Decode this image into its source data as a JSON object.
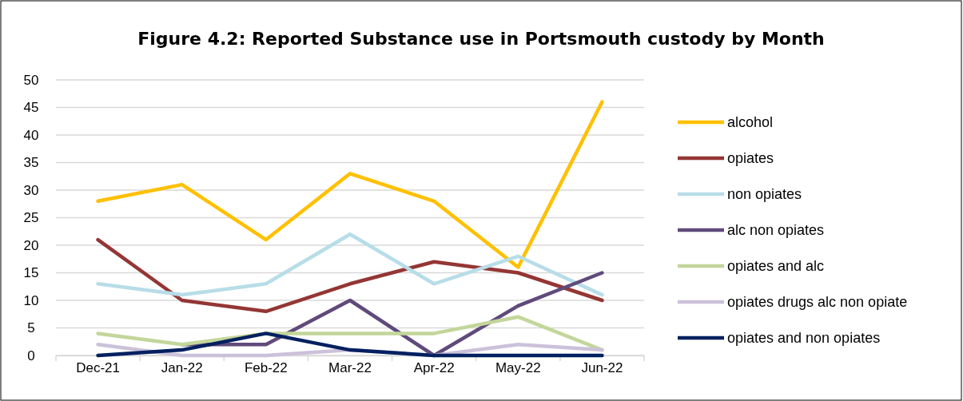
{
  "chart_data": {
    "type": "line",
    "title": "Figure 4.2: Reported Substance use in Portsmouth custody by Month",
    "categories": [
      "Dec-21",
      "Jan-22",
      "Feb-22",
      "Mar-22",
      "Apr-22",
      "May-22",
      "Jun-22"
    ],
    "series": [
      {
        "name": "alcohol",
        "color": "#ffc000",
        "values": [
          28,
          31,
          21,
          33,
          28,
          16,
          46
        ]
      },
      {
        "name": "opiates",
        "color": "#943634",
        "values": [
          21,
          10,
          8,
          13,
          17,
          15,
          10
        ]
      },
      {
        "name": "non opiates",
        "color": "#b7dde8",
        "values": [
          13,
          11,
          13,
          22,
          13,
          18,
          11
        ]
      },
      {
        "name": "alc non opiates",
        "color": "#604a7b",
        "values": [
          null,
          2,
          2,
          10,
          0,
          9,
          15
        ]
      },
      {
        "name": "opiates and alc",
        "color": "#c3d69b",
        "values": [
          4,
          2,
          4,
          4,
          4,
          7,
          1
        ]
      },
      {
        "name": "opiates drugs alc non opiate",
        "color": "#ccc1da",
        "values": [
          2,
          0,
          0,
          1,
          0,
          2,
          1
        ]
      },
      {
        "name": "opiates and non opiates",
        "color": "#002060",
        "values": [
          0,
          1,
          4,
          1,
          0,
          0,
          0
        ]
      }
    ],
    "ylim": [
      0,
      50
    ],
    "yticks": [
      0,
      5,
      10,
      15,
      20,
      25,
      30,
      35,
      40,
      45,
      50
    ],
    "grid": "y",
    "legend": "right",
    "marker": "none",
    "line_style": "solid"
  }
}
